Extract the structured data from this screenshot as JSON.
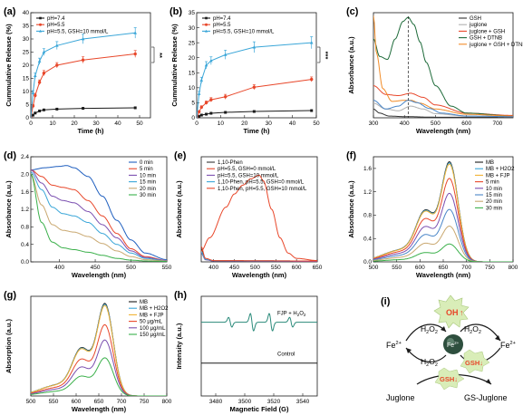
{
  "chart_data": [
    {
      "id": "a",
      "panel_label": "(a)",
      "type": "line",
      "xlabel": "Time (h)",
      "ylabel": "Cummulative Release (%)",
      "xlim": [
        0,
        55
      ],
      "ylim": [
        0,
        40
      ],
      "xticks": [
        0,
        10,
        20,
        30,
        40,
        50
      ],
      "yticks": [
        0,
        5,
        10,
        15,
        20,
        25,
        30,
        35,
        40
      ],
      "xtick_labels": [
        "0",
        "10",
        "20",
        "30",
        "40",
        "50"
      ],
      "ytick_labels": [
        "0",
        "5",
        "10",
        "15",
        "20",
        "25",
        "30",
        "35",
        "40"
      ],
      "legend": "top-left",
      "annotation": "**",
      "series": [
        {
          "name": "pH=7.4",
          "color": "#1a1a1a",
          "marker": "square",
          "x": [
            0,
            1,
            2,
            4,
            6,
            12,
            24,
            48
          ],
          "y": [
            0,
            1.0,
            1.8,
            2.6,
            3.0,
            3.3,
            3.6,
            3.8
          ]
        },
        {
          "name": "pH=5.5",
          "color": "#e8472a",
          "marker": "circle",
          "x": [
            0,
            1,
            2,
            4,
            6,
            12,
            24,
            48
          ],
          "y": [
            0,
            4.5,
            8.5,
            13.5,
            17.0,
            20.0,
            22.0,
            24.3
          ],
          "err": [
            0,
            0.6,
            0.8,
            0.9,
            1.0,
            1.0,
            1.2,
            1.3
          ]
        },
        {
          "name": "pH=5.5, GSH=10 mmol/L",
          "color": "#3aa6d8",
          "marker": "triangle",
          "x": [
            0,
            1,
            2,
            4,
            6,
            12,
            24,
            48
          ],
          "y": [
            0,
            9.5,
            16.0,
            21.5,
            25.0,
            27.5,
            30.0,
            32.3
          ],
          "err": [
            0,
            0.8,
            1.0,
            1.2,
            1.3,
            1.5,
            1.8,
            2.0
          ]
        }
      ]
    },
    {
      "id": "b",
      "panel_label": "(b)",
      "type": "line",
      "xlabel": "Time (h)",
      "ylabel": "Cummulative Release (%)",
      "xlim": [
        0,
        50
      ],
      "ylim": [
        0,
        35
      ],
      "xticks": [
        0,
        10,
        20,
        30,
        40,
        50
      ],
      "yticks": [
        0,
        5,
        10,
        15,
        20,
        25,
        30,
        35
      ],
      "xtick_labels": [
        "0",
        "10",
        "20",
        "30",
        "40",
        "50"
      ],
      "ytick_labels": [
        "0",
        "5",
        "10",
        "15",
        "20",
        "25",
        "30",
        "35"
      ],
      "legend": "top-left",
      "annotation": "***",
      "series": [
        {
          "name": "pH=7.4",
          "color": "#1a1a1a",
          "marker": "square",
          "x": [
            0,
            1,
            2,
            4,
            6,
            12,
            24,
            48
          ],
          "y": [
            0,
            0.5,
            0.9,
            1.2,
            1.5,
            1.8,
            2.1,
            2.4
          ]
        },
        {
          "name": "pH=5.5",
          "color": "#e8472a",
          "marker": "circle",
          "x": [
            0,
            1,
            2,
            4,
            6,
            12,
            24,
            48
          ],
          "y": [
            0,
            2.0,
            3.5,
            5.0,
            6.0,
            7.0,
            10.2,
            12.8
          ],
          "err": [
            0,
            0.4,
            0.5,
            0.6,
            0.7,
            0.8,
            0.8,
            0.8
          ]
        },
        {
          "name": "pH=5.5, GSH=10 mmol/L",
          "color": "#3aa6d8",
          "marker": "triangle",
          "x": [
            0,
            1,
            2,
            4,
            6,
            12,
            24,
            48
          ],
          "y": [
            0,
            8.0,
            12.5,
            17.5,
            19.0,
            21.0,
            23.5,
            25.0
          ],
          "err": [
            0,
            0.8,
            1.0,
            1.2,
            1.3,
            1.5,
            1.8,
            2.0
          ]
        }
      ]
    },
    {
      "id": "c",
      "panel_label": "(c)",
      "type": "line",
      "xlabel": "Wavelength (nm)",
      "ylabel": "Absorbance (a.u.)",
      "xlim": [
        300,
        750
      ],
      "ylim": [
        0,
        1.8
      ],
      "xticks": [
        300,
        400,
        500,
        600,
        700
      ],
      "yticks": [],
      "xtick_labels": [
        "300",
        "400",
        "500",
        "600",
        "700"
      ],
      "ytick_labels": [],
      "legend": "top-right",
      "dashed_vline_x": 412,
      "series": [
        {
          "name": "GSH",
          "color": "#333333",
          "x": [
            300,
            320,
            350,
            400,
            500,
            600,
            750
          ],
          "y": [
            0.15,
            0.08,
            0.03,
            0.02,
            0.01,
            0.01,
            0.01
          ]
        },
        {
          "name": "juglone",
          "color": "#b0b0b0",
          "x": [
            300,
            340,
            380,
            420,
            460,
            500,
            600,
            750
          ],
          "y": [
            0.25,
            0.15,
            0.12,
            0.2,
            0.15,
            0.07,
            0.03,
            0.02
          ]
        },
        {
          "name": "juglone + GSH",
          "color": "#e8472a",
          "x": [
            300,
            340,
            380,
            420,
            460,
            500,
            600,
            750
          ],
          "y": [
            0.55,
            0.4,
            0.38,
            0.42,
            0.35,
            0.22,
            0.08,
            0.04
          ]
        },
        {
          "name": "GSH + DTNB",
          "color": "#1e6b3a",
          "x": [
            300,
            320,
            345,
            370,
            395,
            412,
            430,
            450,
            470,
            500,
            550,
            600,
            750
          ],
          "y": [
            1.35,
            1.05,
            1.0,
            1.35,
            1.65,
            1.72,
            1.6,
            1.3,
            0.95,
            0.55,
            0.2,
            0.08,
            0.03
          ]
        },
        {
          "name": "juglone + GSH + DTNB",
          "color": "#f28c28",
          "x": [
            300,
            310,
            330,
            360,
            400,
            420,
            450,
            500,
            600,
            750
          ],
          "y": [
            1.75,
            1.1,
            0.5,
            0.28,
            0.3,
            0.3,
            0.25,
            0.15,
            0.06,
            0.03
          ]
        },
        {
          "name": "",
          "color": "#4a86c8",
          "x": [
            300,
            340,
            380,
            412,
            440,
            480,
            520,
            600,
            750
          ],
          "y": [
            0.3,
            0.15,
            0.2,
            0.3,
            0.26,
            0.16,
            0.08,
            0.03,
            0.02
          ]
        }
      ]
    },
    {
      "id": "d",
      "panel_label": "(d)",
      "type": "line",
      "xlabel": "Wavelength (nm)",
      "ylabel": "Absorbance (a.u.)",
      "xlim": [
        360,
        550
      ],
      "ylim": [
        0,
        2.4
      ],
      "xticks": [
        400,
        450,
        500,
        550
      ],
      "yticks": [
        0.0,
        0.4,
        0.8,
        1.2,
        1.6,
        2.0,
        2.4
      ],
      "xtick_labels": [
        "400",
        "450",
        "500",
        "550"
      ],
      "ytick_labels": [
        "0.0",
        "0.4",
        "0.8",
        "1.2",
        "1.6",
        "2.0",
        "2.4"
      ],
      "legend": "top-right",
      "series": [
        {
          "name": "0 min",
          "color": "#1f5fbf",
          "x": [
            360,
            380,
            400,
            410,
            420,
            440,
            460,
            480,
            500,
            520,
            550
          ],
          "y": [
            2.1,
            2.15,
            2.18,
            2.2,
            2.15,
            1.95,
            1.5,
            0.95,
            0.5,
            0.2,
            0.05
          ]
        },
        {
          "name": "5 min",
          "color": "#e8472a",
          "x": [
            360,
            375,
            390,
            405,
            420,
            440,
            460,
            480,
            500,
            520,
            550
          ],
          "y": [
            2.1,
            1.95,
            1.75,
            1.7,
            1.65,
            1.4,
            1.05,
            0.65,
            0.3,
            0.12,
            0.03
          ]
        },
        {
          "name": "10 min",
          "color": "#7b4fb0",
          "x": [
            360,
            375,
            390,
            405,
            420,
            440,
            460,
            480,
            500,
            520,
            550
          ],
          "y": [
            2.1,
            1.8,
            1.5,
            1.4,
            1.35,
            1.15,
            0.85,
            0.55,
            0.25,
            0.1,
            0.03
          ]
        },
        {
          "name": "15 min",
          "color": "#3aa6d8",
          "x": [
            360,
            375,
            390,
            405,
            420,
            440,
            460,
            480,
            500,
            520,
            550
          ],
          "y": [
            2.05,
            1.65,
            1.25,
            1.1,
            1.05,
            0.9,
            0.65,
            0.4,
            0.2,
            0.08,
            0.02
          ]
        },
        {
          "name": "20 min",
          "color": "#c9a870",
          "x": [
            360,
            375,
            390,
            405,
            420,
            440,
            460,
            480,
            500,
            520,
            550
          ],
          "y": [
            2.0,
            1.3,
            0.85,
            0.72,
            0.68,
            0.58,
            0.42,
            0.25,
            0.12,
            0.05,
            0.02
          ]
        },
        {
          "name": "30 min",
          "color": "#3ab04a",
          "x": [
            360,
            375,
            390,
            405,
            420,
            440,
            460,
            480,
            500,
            520,
            550
          ],
          "y": [
            2.0,
            0.9,
            0.45,
            0.32,
            0.28,
            0.22,
            0.15,
            0.08,
            0.04,
            0.02,
            0.01
          ]
        }
      ]
    },
    {
      "id": "e",
      "panel_label": "(e)",
      "type": "line",
      "xlabel": "Wavelength (nm)",
      "ylabel": "Absorbance (a.u.)",
      "xlim": [
        370,
        650
      ],
      "ylim": [
        0,
        2.4
      ],
      "xticks": [
        400,
        450,
        500,
        550,
        600,
        650
      ],
      "yticks": [],
      "xtick_labels": [
        "400",
        "450",
        "500",
        "550",
        "600",
        "650"
      ],
      "ytick_labels": [],
      "legend": "top-left",
      "series": [
        {
          "name": "1,10-Phen",
          "color": "#333333",
          "x": [
            370,
            380,
            400,
            650
          ],
          "y": [
            0.3,
            0.05,
            0.02,
            0.01
          ]
        },
        {
          "name": "pH=5.5, GSH=0 mmol/L",
          "color": "#e8472a",
          "x": [
            370,
            390,
            430,
            450,
            470,
            490,
            510,
            520,
            540,
            560,
            580,
            600,
            650
          ],
          "y": [
            0.25,
            0.55,
            1.25,
            1.55,
            1.75,
            1.9,
            1.98,
            1.85,
            1.2,
            0.55,
            0.2,
            0.08,
            0.03
          ]
        },
        {
          "name": "pH=5.5, GSH=10 mmol/L",
          "color": "#7b4fb0",
          "x": [
            370,
            380,
            400,
            650
          ],
          "y": [
            0.2,
            0.05,
            0.02,
            0.01
          ]
        },
        {
          "name": "1,10-Phen, pH=5.5, GSH=0 mmol/L",
          "color": "#3aa6d8",
          "x": [
            370,
            380,
            400,
            650
          ],
          "y": [
            0.22,
            0.06,
            0.03,
            0.02
          ]
        },
        {
          "name": "1,10-Phen, pH=5.5, GSH=10 mmol/L",
          "color": "#e8472a",
          "x": [
            370,
            380,
            400,
            650
          ],
          "y": [
            0.35,
            0.08,
            0.03,
            0.02
          ]
        }
      ]
    },
    {
      "id": "f",
      "panel_label": "(f)",
      "type": "line",
      "xlabel": "Wavelength (nm)",
      "ylabel": "Absorbance (a.u.)",
      "xlim": [
        500,
        800
      ],
      "ylim": [
        0,
        1.8
      ],
      "xticks": [
        500,
        550,
        600,
        650,
        700,
        750,
        800
      ],
      "yticks": [
        0.0,
        0.4,
        0.8,
        1.2,
        1.6
      ],
      "xtick_labels": [
        "500",
        "550",
        "600",
        "650",
        "700",
        "750",
        "800"
      ],
      "ytick_labels": [
        "0.0",
        "0.4",
        "0.8",
        "1.2",
        "1.6"
      ],
      "legend": "top-right",
      "series": [
        {
          "name": "MB",
          "color": "#1a1a1a",
          "peak": 1.68,
          "shoulder": 0.78
        },
        {
          "name": "MB + H2O2",
          "color": "#3aa6d8",
          "peak": 1.66,
          "shoulder": 0.77
        },
        {
          "name": "MB + FJP",
          "color": "#f2b233",
          "peak": 1.64,
          "shoulder": 0.76
        },
        {
          "name": "5 min",
          "color": "#e8472a",
          "peak": 1.4,
          "shoulder": 0.65
        },
        {
          "name": "10 min",
          "color": "#7b4fb0",
          "peak": 1.15,
          "shoulder": 0.53
        },
        {
          "name": "15 min",
          "color": "#4a86c8",
          "peak": 0.88,
          "shoulder": 0.41
        },
        {
          "name": "20 min",
          "color": "#c9a870",
          "peak": 0.6,
          "shoulder": 0.28
        },
        {
          "name": "30 min",
          "color": "#3ab04a",
          "peak": 0.3,
          "shoulder": 0.14
        }
      ]
    },
    {
      "id": "g",
      "panel_label": "(g)",
      "type": "line",
      "xlabel": "Wavelength (nm)",
      "ylabel": "Absorption (a.u.)",
      "xlim": [
        500,
        800
      ],
      "ylim": [
        0,
        2.0
      ],
      "xticks": [
        500,
        550,
        600,
        650,
        700,
        750,
        800
      ],
      "yticks": [],
      "xtick_labels": [
        "500",
        "550",
        "600",
        "650",
        "700",
        "750",
        "800"
      ],
      "ytick_labels": [],
      "legend": "top-right",
      "series": [
        {
          "name": "MB",
          "color": "#1a1a1a",
          "peak": 1.82,
          "shoulder": 0.85
        },
        {
          "name": "MB + H2O2",
          "color": "#3aa6d8",
          "peak": 1.8,
          "shoulder": 0.84
        },
        {
          "name": "MB + FJP",
          "color": "#f2b233",
          "peak": 1.78,
          "shoulder": 0.83
        },
        {
          "name": "50 μg/mL",
          "color": "#e8472a",
          "peak": 1.4,
          "shoulder": 0.65
        },
        {
          "name": "100 μg/mL",
          "color": "#7b4fb0",
          "peak": 1.1,
          "shoulder": 0.51
        },
        {
          "name": "150 μg/mL",
          "color": "#3ab04a",
          "peak": 0.75,
          "shoulder": 0.35
        }
      ]
    },
    {
      "id": "h",
      "panel_label": "(h)",
      "type": "line",
      "xlabel": "Magnetic Field (G)",
      "ylabel": "Intensity (a.u.)",
      "xlim": [
        3470,
        3550
      ],
      "ylim": [
        0,
        1
      ],
      "xticks": [
        3480,
        3500,
        3520,
        3540
      ],
      "yticks": [],
      "xtick_labels": [
        "3480",
        "3500",
        "3520",
        "3540"
      ],
      "ytick_labels": [],
      "legend": "none",
      "series": [
        {
          "name": "FJP + H2O2",
          "color": "#2a8a7a",
          "label": "FJP + H",
          "label_sub": "2",
          "label_tail": "O",
          "label_sub2": "2",
          "baseline": 0.74,
          "lines": [
            3490,
            3505,
            3518,
            3532
          ],
          "amps": [
            0.05,
            0.09,
            0.09,
            0.05
          ]
        },
        {
          "name": "Control",
          "color": "#1a1a1a",
          "label": "Control",
          "baseline": 0.33
        }
      ]
    }
  ],
  "scheme": {
    "panel_label": "(i)",
    "oh": "OH",
    "up_arrow": "↑",
    "down_arrow": "↓",
    "h2o2": "H",
    "sub2": "2",
    "o": "O",
    "fe": "Fe",
    "fe_sup": "2+",
    "fe_center": "Fe",
    "fe_center_sup": "2+",
    "gsh": "GSH",
    "juglone": "Juglone",
    "gs_juglone": "GS-Juglone"
  }
}
